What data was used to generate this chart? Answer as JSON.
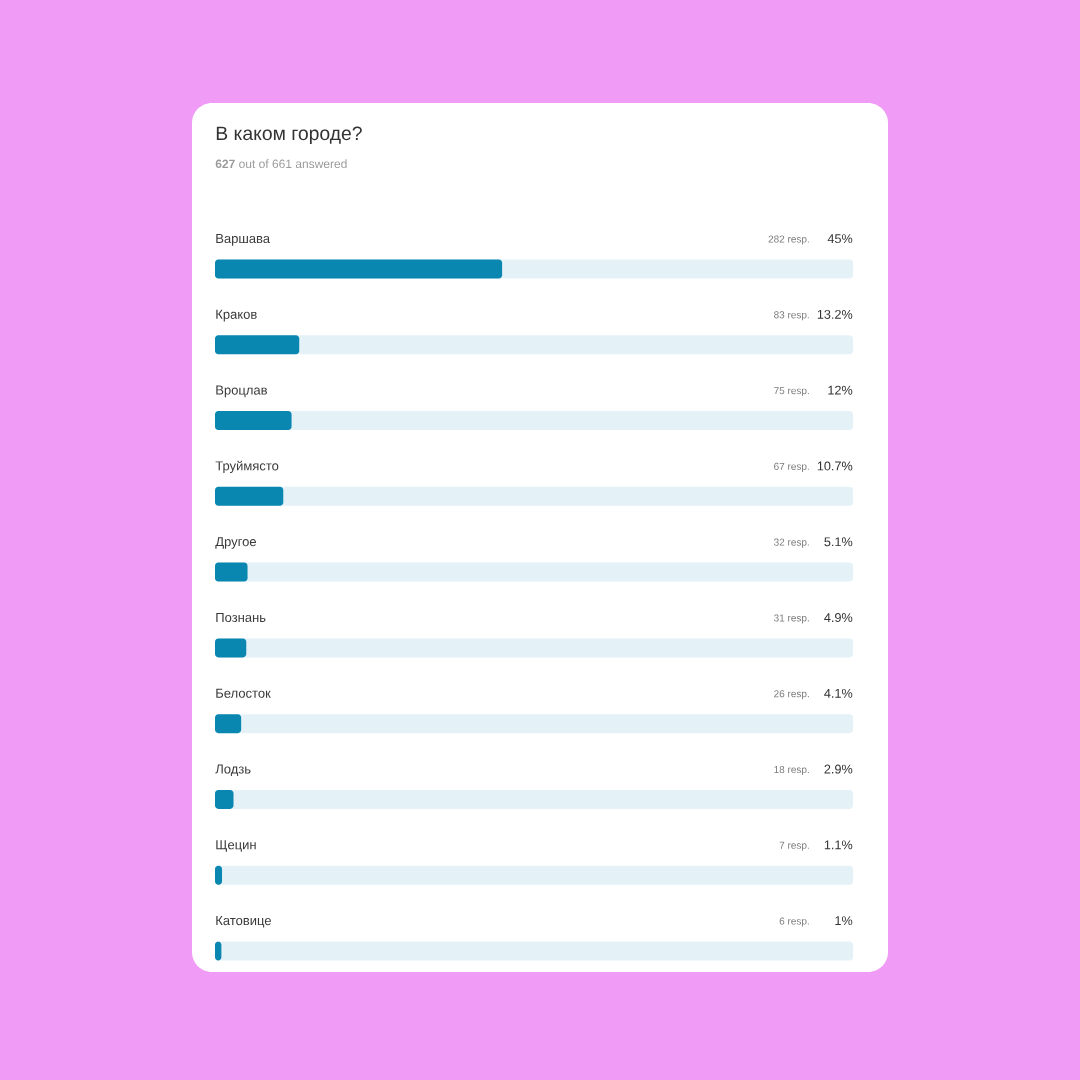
{
  "chart_data": {
    "type": "bar",
    "orientation": "horizontal",
    "title": "В каком городе?",
    "subtitle": "**627** out of 661 answered",
    "categories": [
      "Варшава",
      "Краков",
      "Вроцлав",
      "Труймясто",
      "Другое",
      "Познань",
      "Белосток",
      "Лодзь",
      "Щецин",
      "Катовице"
    ],
    "values": [
      45,
      13.2,
      12,
      10.7,
      5.1,
      4.9,
      4.1,
      2.9,
      1.1,
      1
    ],
    "value_labels": [
      "45%",
      "13.2%",
      "12%",
      "10.7%",
      "5.1%",
      "4.9%",
      "4.1%",
      "2.9%",
      "1.1%",
      "1%"
    ],
    "annotations": [
      "282 resp.",
      "83 resp.",
      "75 resp.",
      "67 resp.",
      "32 resp.",
      "31 resp.",
      "26 resp.",
      "18 resp.",
      "7 resp.",
      "6 resp."
    ],
    "color": "#0a87b0",
    "xlim": [
      0,
      100
    ]
  }
}
